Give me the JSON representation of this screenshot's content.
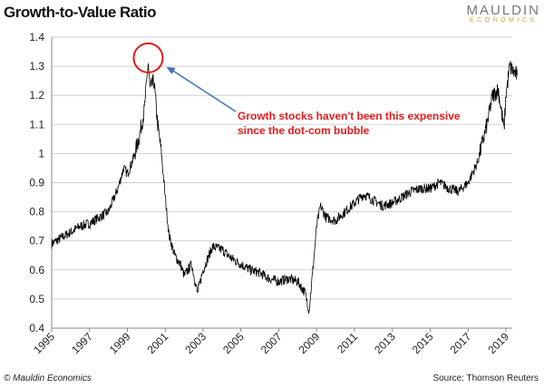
{
  "title": "Growth-to-Value Ratio",
  "logo": {
    "line1": "MAULDIN",
    "line2": "ECONOMICS"
  },
  "footer": {
    "copyright": "© Mauldin Economics",
    "source": "Source: Thomson Reuters"
  },
  "chart_data": {
    "type": "line",
    "title": "Growth-to-Value Ratio",
    "xlim": [
      1995,
      2019.7
    ],
    "ylim": [
      0.4,
      1.4
    ],
    "grid": "horizontal",
    "x_ticks": [
      "1995",
      "1997",
      "1999",
      "2001",
      "2003",
      "2005",
      "2007",
      "2009",
      "2011",
      "2013",
      "2015",
      "2017",
      "2019"
    ],
    "y_ticks": [
      "0.4",
      "0.5",
      "0.6",
      "0.7",
      "0.8",
      "0.9",
      "1",
      "1.1",
      "1.2",
      "1.3",
      "1.4"
    ],
    "line_color": "#000000",
    "annotation": {
      "text_line1": "Growth stocks haven't been this expensive",
      "text_line2": "since the dot-com bubble",
      "color": "#e31b1b",
      "arrow_color": "#3f72b5",
      "circled_point": [
        2000.1,
        1.31
      ]
    },
    "points": [
      [
        1995.0,
        0.69
      ],
      [
        1995.5,
        0.71
      ],
      [
        1996.0,
        0.73
      ],
      [
        1996.5,
        0.75
      ],
      [
        1997.0,
        0.76
      ],
      [
        1997.5,
        0.78
      ],
      [
        1998.0,
        0.8
      ],
      [
        1998.5,
        0.88
      ],
      [
        1998.8,
        0.95
      ],
      [
        1999.0,
        0.93
      ],
      [
        1999.3,
        0.98
      ],
      [
        1999.6,
        1.05
      ],
      [
        1999.9,
        1.15
      ],
      [
        2000.1,
        1.31
      ],
      [
        2000.2,
        1.22
      ],
      [
        2000.4,
        1.25
      ],
      [
        2000.6,
        1.1
      ],
      [
        2000.8,
        1.0
      ],
      [
        2001.0,
        0.85
      ],
      [
        2001.2,
        0.72
      ],
      [
        2001.5,
        0.65
      ],
      [
        2001.8,
        0.62
      ],
      [
        2002.0,
        0.58
      ],
      [
        2002.4,
        0.62
      ],
      [
        2002.7,
        0.52
      ],
      [
        2003.0,
        0.6
      ],
      [
        2003.5,
        0.68
      ],
      [
        2004.0,
        0.67
      ],
      [
        2004.5,
        0.64
      ],
      [
        2005.0,
        0.62
      ],
      [
        2005.5,
        0.6
      ],
      [
        2006.0,
        0.59
      ],
      [
        2006.5,
        0.57
      ],
      [
        2007.0,
        0.56
      ],
      [
        2007.5,
        0.57
      ],
      [
        2008.0,
        0.56
      ],
      [
        2008.4,
        0.52
      ],
      [
        2008.6,
        0.46
      ],
      [
        2008.8,
        0.6
      ],
      [
        2009.0,
        0.75
      ],
      [
        2009.2,
        0.82
      ],
      [
        2009.5,
        0.78
      ],
      [
        2010.0,
        0.77
      ],
      [
        2010.5,
        0.8
      ],
      [
        2011.0,
        0.83
      ],
      [
        2011.5,
        0.86
      ],
      [
        2012.0,
        0.84
      ],
      [
        2012.5,
        0.82
      ],
      [
        2013.0,
        0.83
      ],
      [
        2013.5,
        0.85
      ],
      [
        2014.0,
        0.87
      ],
      [
        2014.5,
        0.88
      ],
      [
        2015.0,
        0.88
      ],
      [
        2015.5,
        0.9
      ],
      [
        2016.0,
        0.88
      ],
      [
        2016.5,
        0.87
      ],
      [
        2017.0,
        0.9
      ],
      [
        2017.5,
        0.97
      ],
      [
        2018.0,
        1.1
      ],
      [
        2018.3,
        1.2
      ],
      [
        2018.6,
        1.22
      ],
      [
        2018.9,
        1.08
      ],
      [
        2019.0,
        1.2
      ],
      [
        2019.2,
        1.3
      ],
      [
        2019.4,
        1.28
      ],
      [
        2019.6,
        1.27
      ]
    ]
  }
}
